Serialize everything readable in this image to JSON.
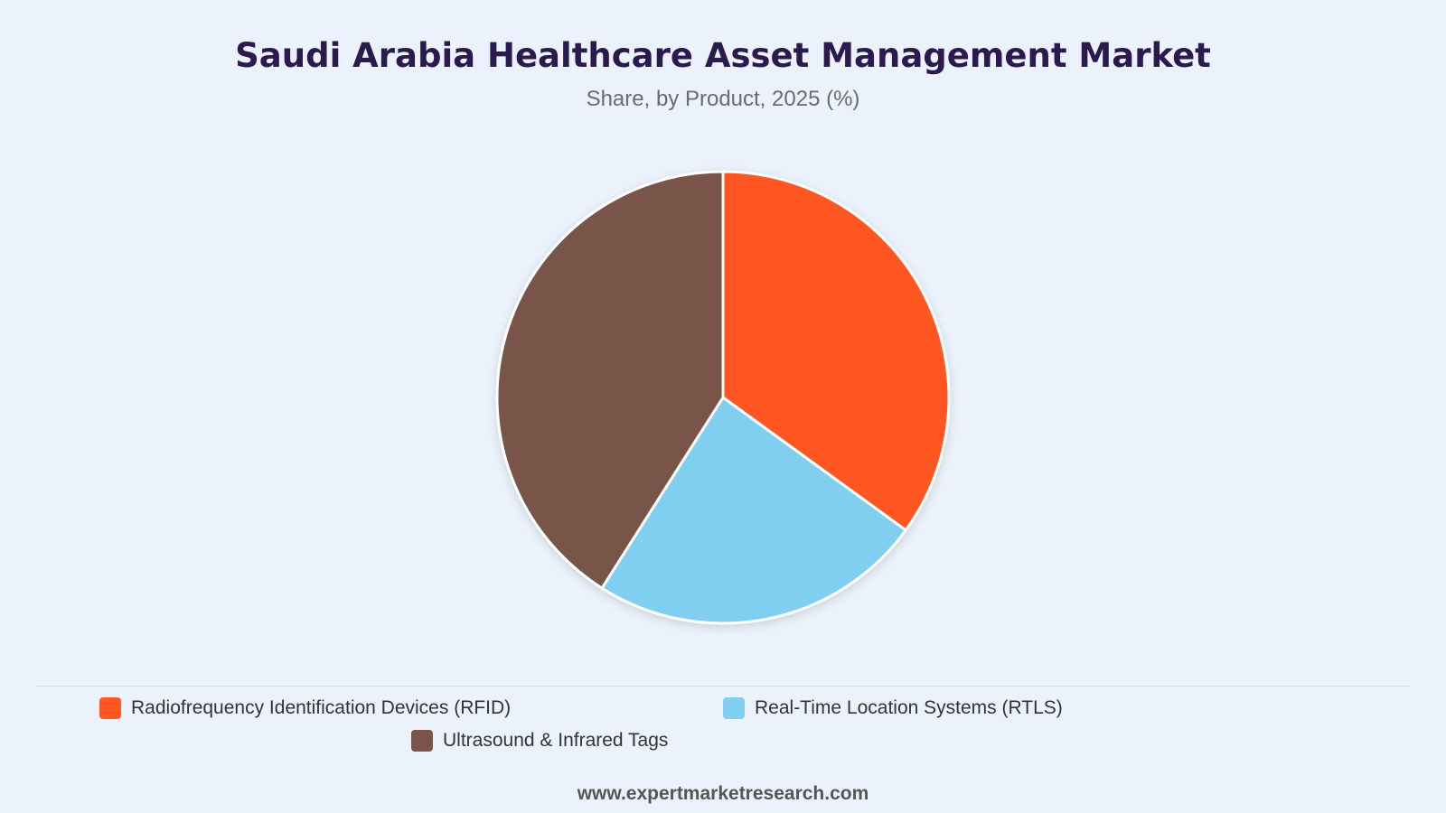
{
  "header": {
    "title": "Saudi Arabia Healthcare Asset Management Market",
    "subtitle": "Share, by Product, 2025 (%)"
  },
  "footer": {
    "source": "www.expertmarketresearch.com"
  },
  "chart_data": {
    "type": "pie",
    "title": "Saudi Arabia Healthcare Asset Management Market",
    "subtitle": "Share, by Product, 2025 (%)",
    "categories": [
      "Radiofrequency Identification Devices (RFID)",
      "Real-Time Location Systems (RTLS)",
      "Ultrasound & Infrared Tags"
    ],
    "values": [
      35,
      24,
      41
    ],
    "colors": [
      "#ff5722",
      "#81cff0",
      "#795548"
    ],
    "start_angle": "12 o'clock, clockwise",
    "legend_position": "bottom",
    "data_labels": false
  }
}
